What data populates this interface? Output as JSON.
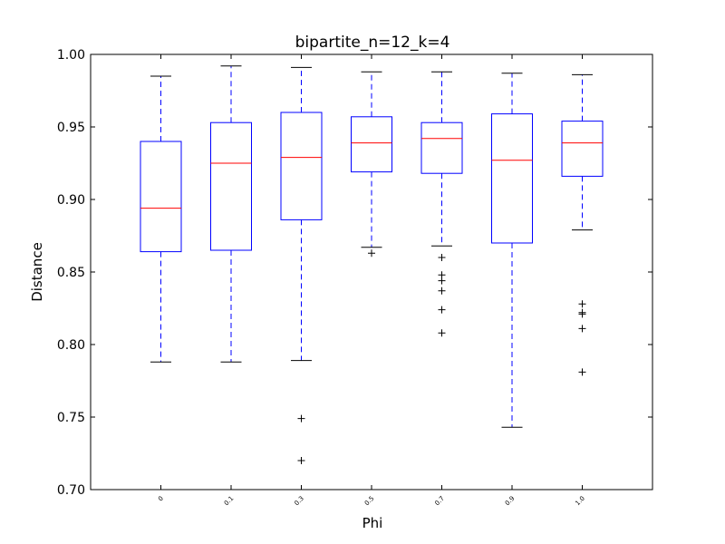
{
  "chart_data": {
    "type": "box",
    "title": "bipartite_n=12_k=4",
    "xlabel": "Phi",
    "ylabel": "Distance",
    "ylim": [
      0.7,
      1.0
    ],
    "yticks": [
      0.7,
      0.75,
      0.8,
      0.85,
      0.9,
      0.95,
      1.0
    ],
    "ytick_labels": [
      "0.70",
      "0.75",
      "0.80",
      "0.85",
      "0.90",
      "0.95",
      "1.00"
    ],
    "grid": false,
    "colors": {
      "box": "#0000ff",
      "whisker": "#0000ff",
      "median": "#ff0000",
      "cap": "#000000",
      "flier": "#000000"
    },
    "categories": [
      "0",
      "0.1",
      "0.3",
      "0.5",
      "0.7",
      "0.9",
      "1.0"
    ],
    "boxes": [
      {
        "label": "0",
        "whisker_low": 0.788,
        "q1": 0.864,
        "median": 0.894,
        "q3": 0.94,
        "whisker_high": 0.985,
        "outliers": []
      },
      {
        "label": "0.1",
        "whisker_low": 0.788,
        "q1": 0.865,
        "median": 0.925,
        "q3": 0.953,
        "whisker_high": 0.992,
        "outliers": []
      },
      {
        "label": "0.3",
        "whisker_low": 0.789,
        "q1": 0.886,
        "median": 0.929,
        "q3": 0.96,
        "whisker_high": 0.991,
        "outliers": [
          0.749,
          0.72
        ]
      },
      {
        "label": "0.5",
        "whisker_low": 0.867,
        "q1": 0.919,
        "median": 0.939,
        "q3": 0.957,
        "whisker_high": 0.988,
        "outliers": [
          0.863
        ]
      },
      {
        "label": "0.7",
        "whisker_low": 0.868,
        "q1": 0.918,
        "median": 0.942,
        "q3": 0.953,
        "whisker_high": 0.988,
        "outliers": [
          0.86,
          0.848,
          0.844,
          0.837,
          0.824,
          0.808
        ]
      },
      {
        "label": "0.9",
        "whisker_low": 0.743,
        "q1": 0.87,
        "median": 0.927,
        "q3": 0.959,
        "whisker_high": 0.987,
        "outliers": []
      },
      {
        "label": "1.0",
        "whisker_low": 0.879,
        "q1": 0.916,
        "median": 0.939,
        "q3": 0.954,
        "whisker_high": 0.986,
        "outliers": [
          0.828,
          0.822,
          0.821,
          0.811,
          0.781
        ]
      }
    ]
  }
}
